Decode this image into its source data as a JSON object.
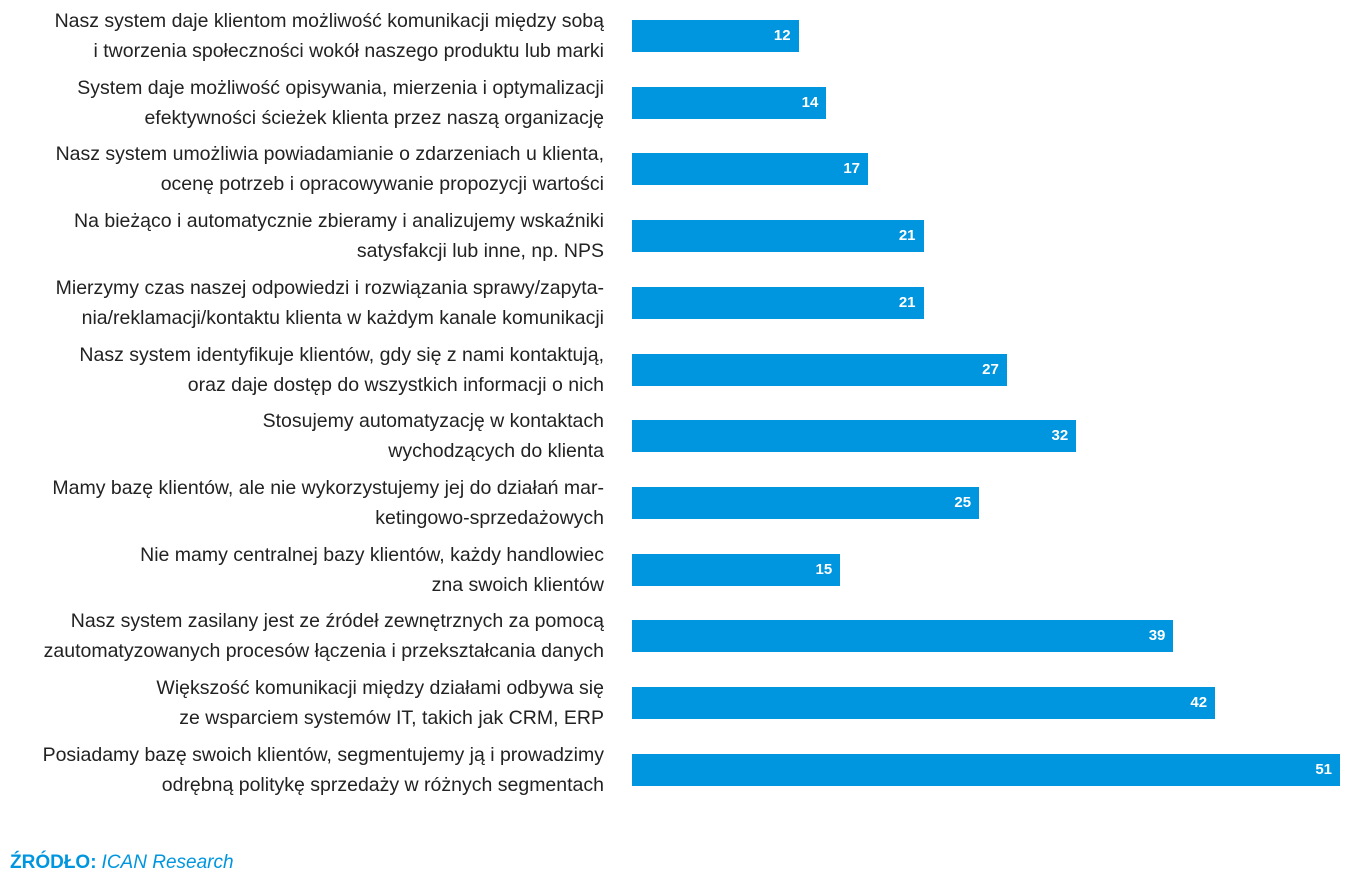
{
  "chart_data": {
    "type": "bar",
    "orientation": "horizontal",
    "title": "",
    "xlabel": "",
    "ylabel": "",
    "xlim": [
      0,
      51
    ],
    "grid": false,
    "categories": [
      [
        "Nasz system daje klientom możliwość komunikacji między sobą",
        "i tworzenia społeczności wokół naszego produktu lub marki"
      ],
      [
        "System daje możliwość opisywania, mierzenia i optymalizacji",
        "efektywności ścieżek klienta przez naszą organizację"
      ],
      [
        "Nasz system umożliwia powiadamianie o zdarzeniach u klienta,",
        "ocenę potrzeb i opracowywanie propozycji wartości"
      ],
      [
        "Na bieżąco i automatycznie zbieramy i analizujemy wskaźniki",
        "satysfakcji lub inne, np. NPS"
      ],
      [
        "Mierzymy czas naszej odpowiedzi i rozwiązania sprawy/zapyta-",
        "nia/reklamacji/kontaktu klienta w każdym kanale komunikacji"
      ],
      [
        "Nasz system identyfikuje klientów, gdy się z nami kontaktują,",
        "oraz daje dostęp do wszystkich informacji o nich"
      ],
      [
        "Stosujemy automatyzację w kontaktach",
        "wychodzących do klienta"
      ],
      [
        "Mamy bazę klientów, ale nie wykorzystujemy jej do działań mar-",
        "ketingowo-sprzedażowych"
      ],
      [
        "Nie mamy centralnej bazy klientów, każdy handlowiec",
        "zna swoich klientów"
      ],
      [
        "Nasz system zasilany jest ze źródeł zewnętrznych za pomocą",
        "zautomatyzowanych procesów łączenia i przekształcania danych"
      ],
      [
        "Większość komunikacji między działami odbywa się",
        "ze wsparciem systemów IT, takich jak CRM, ERP"
      ],
      [
        "Posiadamy bazę swoich klientów, segmentujemy ją i prowadzimy",
        "odrębną politykę sprzedaży w różnych segmentach"
      ]
    ],
    "values": [
      12,
      14,
      17,
      21,
      21,
      27,
      32,
      25,
      15,
      39,
      42,
      51
    ],
    "bar_color": "#0096df",
    "value_label_color": "#ffffff"
  },
  "source": {
    "label": "ŹRÓDŁO:",
    "value": "ICAN Research",
    "label_color": "#0096df",
    "value_color": "#0096df"
  }
}
